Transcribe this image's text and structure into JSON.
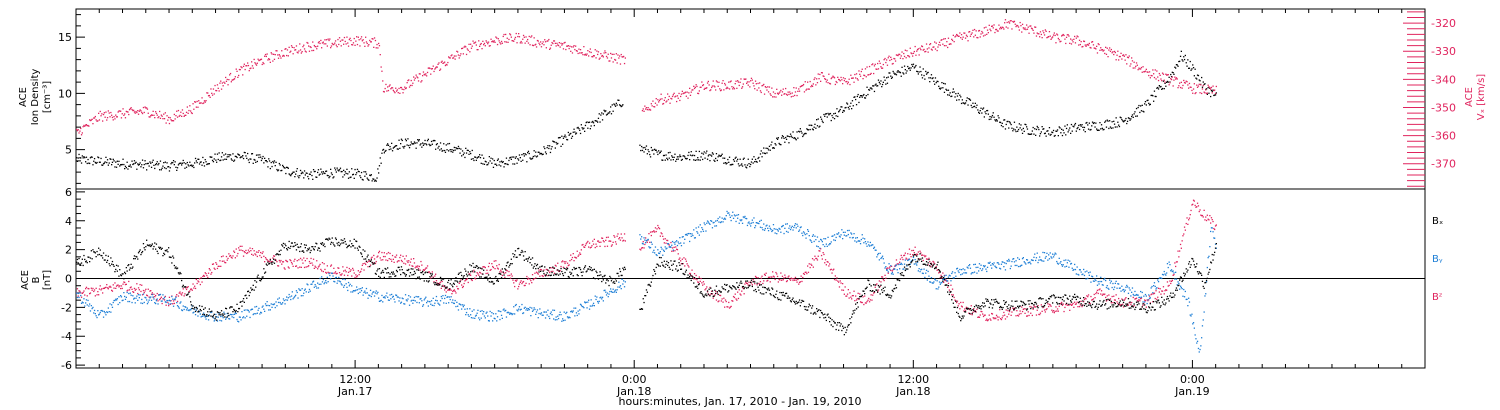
{
  "colors": {
    "density": "#000000",
    "vx": "#e0245e",
    "bx": "#000000",
    "by": "#1e7fd6",
    "bz": "#e0245e",
    "axis": "#000000"
  },
  "chart_data": [
    {
      "type": "scatter",
      "panel": "top",
      "ylabel_lines": [
        "ACE",
        "Ion Density",
        "[cm⁻³]"
      ],
      "y2label_lines": [
        "ACE",
        "Vₓ [km/s]"
      ],
      "ylim": [
        1.5,
        17.5
      ],
      "y_ticks": [
        5,
        10,
        15
      ],
      "y2lim": [
        -379,
        -315
      ],
      "y2_ticks": [
        -370,
        -360,
        -350,
        -340,
        -330,
        -320
      ],
      "x_unit": "hours since 00:00 Jan 17, 2010",
      "xlim": [
        0,
        58
      ],
      "series": [
        {
          "name": "Ion Density",
          "axis": "left",
          "color": "#000000",
          "points": [
            [
              0,
              4.2
            ],
            [
              1,
              4.0
            ],
            [
              2,
              3.8
            ],
            [
              3,
              3.7
            ],
            [
              4,
              3.6
            ],
            [
              5,
              3.8
            ],
            [
              6,
              4.3
            ],
            [
              7,
              4.5
            ],
            [
              8,
              4.1
            ],
            [
              9,
              3.2
            ],
            [
              10,
              2.8
            ],
            [
              11,
              3.0
            ],
            [
              12,
              2.9
            ],
            [
              12.9,
              2.6
            ],
            [
              13.2,
              5.2
            ],
            [
              14,
              5.6
            ],
            [
              15,
              5.6
            ],
            [
              16,
              5.2
            ],
            [
              17,
              4.6
            ],
            [
              18,
              3.8
            ],
            [
              19,
              4.2
            ],
            [
              20,
              4.8
            ],
            [
              21,
              6.0
            ],
            [
              22,
              7.2
            ],
            [
              23,
              8.6
            ],
            [
              23.5,
              9.4
            ],
            [
              23.8,
              null
            ],
            [
              24.2,
              5.2
            ],
            [
              25,
              4.6
            ],
            [
              26,
              4.4
            ],
            [
              27,
              4.6
            ],
            [
              28,
              4.2
            ],
            [
              29,
              3.8
            ],
            [
              30,
              5.6
            ],
            [
              31,
              6.4
            ],
            [
              32,
              7.6
            ],
            [
              33,
              8.6
            ],
            [
              34,
              10.2
            ],
            [
              35,
              11.6
            ],
            [
              36,
              12.4
            ],
            [
              37,
              11.0
            ],
            [
              38,
              9.6
            ],
            [
              39,
              8.4
            ],
            [
              40,
              7.2
            ],
            [
              41,
              6.8
            ],
            [
              42,
              6.6
            ],
            [
              43,
              7.0
            ],
            [
              44,
              7.2
            ],
            [
              45,
              7.6
            ],
            [
              46,
              9.0
            ],
            [
              47,
              11.4
            ],
            [
              47.5,
              13.4
            ],
            [
              48,
              12.2
            ],
            [
              48.5,
              10.6
            ],
            [
              49,
              9.8
            ]
          ]
        },
        {
          "name": "Vₓ",
          "axis": "right",
          "color": "#e0245e",
          "points": [
            [
              0,
              -359
            ],
            [
              1,
              -353
            ],
            [
              2,
              -352
            ],
            [
              3,
              -351
            ],
            [
              4,
              -354
            ],
            [
              5,
              -350
            ],
            [
              6,
              -343
            ],
            [
              7,
              -337
            ],
            [
              8,
              -333
            ],
            [
              9,
              -330
            ],
            [
              10,
              -328
            ],
            [
              11,
              -327
            ],
            [
              12,
              -326
            ],
            [
              13,
              -327
            ],
            [
              13.2,
              -343
            ],
            [
              14,
              -343
            ],
            [
              15,
              -338
            ],
            [
              16,
              -333
            ],
            [
              17,
              -328
            ],
            [
              18,
              -326
            ],
            [
              19,
              -325
            ],
            [
              20,
              -327
            ],
            [
              21,
              -328
            ],
            [
              22,
              -330
            ],
            [
              23,
              -332
            ],
            [
              23.6,
              -333
            ],
            [
              23.8,
              null
            ],
            [
              24.3,
              -352
            ],
            [
              25,
              -347
            ],
            [
              26,
              -346
            ],
            [
              27,
              -342
            ],
            [
              28,
              -342
            ],
            [
              29,
              -341
            ],
            [
              30,
              -345
            ],
            [
              31,
              -344
            ],
            [
              32,
              -339
            ],
            [
              33,
              -341
            ],
            [
              34,
              -337
            ],
            [
              35,
              -333
            ],
            [
              36,
              -330
            ],
            [
              37,
              -328
            ],
            [
              38,
              -325
            ],
            [
              39,
              -323
            ],
            [
              40,
              -320
            ],
            [
              41,
              -322
            ],
            [
              42,
              -325
            ],
            [
              43,
              -326
            ],
            [
              44,
              -329
            ],
            [
              45,
              -332
            ],
            [
              46,
              -337
            ],
            [
              47,
              -340
            ],
            [
              48,
              -343
            ],
            [
              49,
              -344
            ]
          ]
        }
      ]
    },
    {
      "type": "scatter",
      "panel": "bottom",
      "ylabel_lines": [
        "ACE",
        "B",
        "[nT]"
      ],
      "ylim": [
        -6.2,
        6.2
      ],
      "y_ticks": [
        -6,
        -4,
        -2,
        0,
        2,
        4,
        6
      ],
      "x_unit": "hours since 00:00 Jan 17, 2010",
      "xlim": [
        0,
        58
      ],
      "series": [
        {
          "name": "Bₓ",
          "color": "#000000",
          "points": [
            [
              0,
              1.0
            ],
            [
              1,
              2.0
            ],
            [
              2,
              0.2
            ],
            [
              3,
              2.4
            ],
            [
              4,
              1.8
            ],
            [
              5,
              -1.8
            ],
            [
              6,
              -2.6
            ],
            [
              7,
              -2.0
            ],
            [
              8,
              0.4
            ],
            [
              9,
              2.4
            ],
            [
              10,
              2.0
            ],
            [
              11,
              2.6
            ],
            [
              12,
              2.4
            ],
            [
              13,
              0.4
            ],
            [
              14,
              0.6
            ],
            [
              15,
              0.2
            ],
            [
              16,
              -0.4
            ],
            [
              17,
              0.8
            ],
            [
              18,
              -0.2
            ],
            [
              19,
              2.0
            ],
            [
              20,
              0.6
            ],
            [
              21,
              0.4
            ],
            [
              22,
              0.6
            ],
            [
              23,
              -0.2
            ],
            [
              23.6,
              0.8
            ],
            [
              23.8,
              null
            ],
            [
              24.2,
              -2.4
            ],
            [
              25,
              1.2
            ],
            [
              26,
              0.8
            ],
            [
              27,
              -1.0
            ],
            [
              28,
              -0.6
            ],
            [
              29,
              -0.4
            ],
            [
              30,
              -1.0
            ],
            [
              31,
              -1.6
            ],
            [
              32,
              -2.4
            ],
            [
              33,
              -3.6
            ],
            [
              34,
              -0.4
            ],
            [
              35,
              -1.0
            ],
            [
              36,
              1.6
            ],
            [
              37,
              1.0
            ],
            [
              38,
              -2.6
            ],
            [
              39,
              -1.6
            ],
            [
              40,
              -1.8
            ],
            [
              41,
              -1.8
            ],
            [
              42,
              -1.4
            ],
            [
              43,
              -1.4
            ],
            [
              44,
              -1.8
            ],
            [
              45,
              -1.6
            ],
            [
              46,
              -2.0
            ],
            [
              47,
              -1.4
            ],
            [
              48,
              1.4
            ],
            [
              48.5,
              -0.4
            ],
            [
              49,
              2.4
            ]
          ]
        },
        {
          "name": "Bᵧ",
          "color": "#1e7fd6",
          "points": [
            [
              0,
              -1.0
            ],
            [
              1,
              -2.6
            ],
            [
              2,
              -1.2
            ],
            [
              3,
              -1.4
            ],
            [
              4,
              -1.4
            ],
            [
              5,
              -2.2
            ],
            [
              6,
              -2.6
            ],
            [
              7,
              -2.6
            ],
            [
              8,
              -2.0
            ],
            [
              9,
              -1.4
            ],
            [
              10,
              -0.6
            ],
            [
              11,
              0.2
            ],
            [
              12,
              -0.8
            ],
            [
              13,
              -1.2
            ],
            [
              14,
              -1.4
            ],
            [
              15,
              -1.6
            ],
            [
              16,
              -1.4
            ],
            [
              17,
              -2.4
            ],
            [
              18,
              -2.6
            ],
            [
              19,
              -2.0
            ],
            [
              20,
              -2.4
            ],
            [
              21,
              -2.6
            ],
            [
              22,
              -1.8
            ],
            [
              23,
              -0.8
            ],
            [
              23.6,
              -0.2
            ],
            [
              23.8,
              null
            ],
            [
              24.2,
              3.0
            ],
            [
              25,
              1.8
            ],
            [
              26,
              2.6
            ],
            [
              27,
              3.6
            ],
            [
              28,
              4.4
            ],
            [
              29,
              4.0
            ],
            [
              30,
              3.4
            ],
            [
              31,
              3.6
            ],
            [
              32,
              2.4
            ],
            [
              33,
              3.2
            ],
            [
              34,
              2.6
            ],
            [
              35,
              0.6
            ],
            [
              36,
              1.2
            ],
            [
              37,
              -0.4
            ],
            [
              38,
              0.6
            ],
            [
              39,
              0.8
            ],
            [
              40,
              1.0
            ],
            [
              41,
              1.4
            ],
            [
              42,
              1.6
            ],
            [
              43,
              0.6
            ],
            [
              44,
              -0.2
            ],
            [
              45,
              -0.6
            ],
            [
              46,
              -1.4
            ],
            [
              47,
              1.0
            ],
            [
              47.8,
              -1.6
            ],
            [
              48.3,
              -5.2
            ],
            [
              48.8,
              4.0
            ],
            [
              49,
              2.2
            ]
          ]
        },
        {
          "name": "B𝒵",
          "color": "#e0245e",
          "points": [
            [
              0,
              -1.0
            ],
            [
              1,
              -0.8
            ],
            [
              2,
              -0.4
            ],
            [
              3,
              -0.8
            ],
            [
              4,
              -1.6
            ],
            [
              5,
              -0.6
            ],
            [
              6,
              1.0
            ],
            [
              7,
              2.0
            ],
            [
              8,
              1.6
            ],
            [
              9,
              1.0
            ],
            [
              10,
              1.2
            ],
            [
              11,
              0.6
            ],
            [
              12,
              0.4
            ],
            [
              13,
              1.6
            ],
            [
              14,
              1.4
            ],
            [
              15,
              0.8
            ],
            [
              16,
              -1.0
            ],
            [
              17,
              0.2
            ],
            [
              18,
              1.0
            ],
            [
              19,
              -0.4
            ],
            [
              20,
              0.4
            ],
            [
              21,
              1.0
            ],
            [
              22,
              2.4
            ],
            [
              23,
              2.6
            ],
            [
              23.6,
              3.0
            ],
            [
              23.8,
              null
            ],
            [
              24.2,
              2.2
            ],
            [
              25,
              3.4
            ],
            [
              26,
              1.4
            ],
            [
              27,
              -0.6
            ],
            [
              28,
              -1.8
            ],
            [
              29,
              -0.2
            ],
            [
              30,
              0.2
            ],
            [
              31,
              -0.2
            ],
            [
              32,
              1.8
            ],
            [
              33,
              -0.8
            ],
            [
              34,
              -1.6
            ],
            [
              35,
              0.8
            ],
            [
              36,
              2.0
            ],
            [
              37,
              0.8
            ],
            [
              38,
              -1.8
            ],
            [
              39,
              -2.6
            ],
            [
              40,
              -2.4
            ],
            [
              41,
              -2.2
            ],
            [
              42,
              -2.0
            ],
            [
              43,
              -1.8
            ],
            [
              44,
              -1.0
            ],
            [
              45,
              -1.6
            ],
            [
              46,
              -1.6
            ],
            [
              47,
              -0.4
            ],
            [
              48,
              5.4
            ],
            [
              48.5,
              4.4
            ],
            [
              49,
              3.6
            ]
          ]
        }
      ],
      "legend": [
        "Bₓ",
        "Bᵧ",
        "B𝒵"
      ]
    }
  ],
  "x_axis": {
    "tick_labels": [
      {
        "x": 12,
        "time": "12:00",
        "date": "Jan.17"
      },
      {
        "x": 24,
        "time": "0:00",
        "date": "Jan.18"
      },
      {
        "x": 36,
        "time": "12:00",
        "date": "Jan.18"
      },
      {
        "x": 48,
        "time": "0:00",
        "date": "Jan.19"
      }
    ],
    "title": "hours:minutes, Jan. 17, 2010 - Jan. 19, 2010"
  },
  "bottom_legend": {
    "bx": "Bₓ",
    "by": "Bᵧ",
    "bz": "Bᶻ"
  }
}
